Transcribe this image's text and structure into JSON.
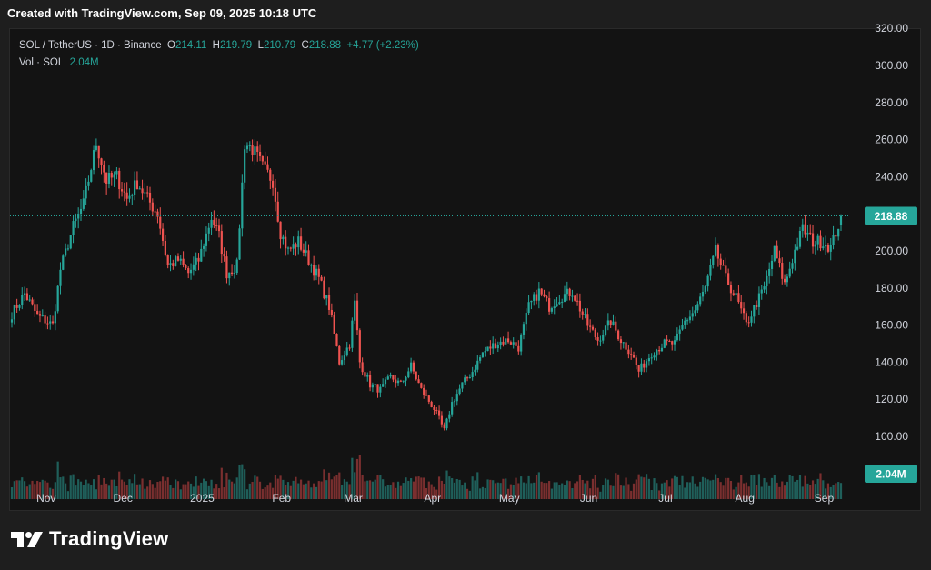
{
  "header": {
    "created_with": "Created with TradingView.com, Sep 09, 2025 10:18 UTC"
  },
  "legend": {
    "symbol": "SOL / TetherUS · 1D · Binance",
    "open_label": "O",
    "open_value": "214.11",
    "high_label": "H",
    "high_value": "219.79",
    "low_label": "L",
    "low_value": "210.79",
    "close_label": "C",
    "close_value": "218.88",
    "change": "+4.77 (+2.23%)",
    "volume_label": "Vol · SOL",
    "volume_value": "2.04M"
  },
  "footer": {
    "brand": "TradingView",
    "logo_icon": "tradingview-logo-icon"
  },
  "colors": {
    "up": "#26a69a",
    "down": "#ef5350",
    "volume_up": "#1f5f5a",
    "volume_down": "#7a2f2f",
    "background": "#131313",
    "axis_text": "#d1d4dc",
    "badge": "#26a69a"
  },
  "chart_data": {
    "type": "candlestick",
    "symbol": "SOL / TetherUS",
    "interval": "1D",
    "exchange": "Binance",
    "ylim": [
      90,
      320
    ],
    "y_ticks": [
      "320.00",
      "300.00",
      "280.00",
      "260.00",
      "240.00",
      "220.00",
      "200.00",
      "180.00",
      "160.00",
      "140.00",
      "120.00",
      "100.00"
    ],
    "x_ticks": [
      "Nov",
      "Dec",
      "2025",
      "Feb",
      "Mar",
      "Apr",
      "May",
      "Jun",
      "Jul",
      "Aug",
      "Sep"
    ],
    "last_price_label": "218.88",
    "last_volume_label": "2.04M",
    "grid": false,
    "close_anchors": [
      [
        "2024-10-20",
        166
      ],
      [
        "2024-10-25",
        177
      ],
      [
        "2024-10-30",
        165
      ],
      [
        "2024-11-05",
        160
      ],
      [
        "2024-11-08",
        190
      ],
      [
        "2024-11-13",
        213
      ],
      [
        "2024-11-17",
        225
      ],
      [
        "2024-11-20",
        245
      ],
      [
        "2024-11-22",
        258
      ],
      [
        "2024-11-26",
        238
      ],
      [
        "2024-11-30",
        240
      ],
      [
        "2024-12-04",
        228
      ],
      [
        "2024-12-08",
        237
      ],
      [
        "2024-12-12",
        228
      ],
      [
        "2024-12-16",
        220
      ],
      [
        "2024-12-20",
        192
      ],
      [
        "2024-12-24",
        195
      ],
      [
        "2024-12-28",
        188
      ],
      [
        "2025-01-01",
        195
      ],
      [
        "2025-01-06",
        218
      ],
      [
        "2025-01-09",
        208
      ],
      [
        "2025-01-12",
        188
      ],
      [
        "2025-01-16",
        192
      ],
      [
        "2025-01-19",
        258
      ],
      [
        "2025-01-22",
        255
      ],
      [
        "2025-01-26",
        245
      ],
      [
        "2025-01-30",
        238
      ],
      [
        "2025-02-02",
        210
      ],
      [
        "2025-02-05",
        200
      ],
      [
        "2025-02-09",
        205
      ],
      [
        "2025-02-13",
        195
      ],
      [
        "2025-02-17",
        185
      ],
      [
        "2025-02-21",
        170
      ],
      [
        "2025-02-25",
        140
      ],
      [
        "2025-03-01",
        150
      ],
      [
        "2025-03-03",
        172
      ],
      [
        "2025-03-05",
        140
      ],
      [
        "2025-03-09",
        128
      ],
      [
        "2025-03-13",
        125
      ],
      [
        "2025-03-17",
        132
      ],
      [
        "2025-03-21",
        128
      ],
      [
        "2025-03-25",
        138
      ],
      [
        "2025-03-29",
        125
      ],
      [
        "2025-04-03",
        115
      ],
      [
        "2025-04-07",
        103
      ],
      [
        "2025-04-10",
        118
      ],
      [
        "2025-04-14",
        128
      ],
      [
        "2025-04-18",
        135
      ],
      [
        "2025-04-22",
        145
      ],
      [
        "2025-04-27",
        150
      ],
      [
        "2025-05-02",
        152
      ],
      [
        "2025-05-06",
        148
      ],
      [
        "2025-05-10",
        170
      ],
      [
        "2025-05-14",
        178
      ],
      [
        "2025-05-18",
        170
      ],
      [
        "2025-05-22",
        175
      ],
      [
        "2025-05-27",
        178
      ],
      [
        "2025-06-02",
        160
      ],
      [
        "2025-06-06",
        152
      ],
      [
        "2025-06-11",
        162
      ],
      [
        "2025-06-15",
        152
      ],
      [
        "2025-06-19",
        145
      ],
      [
        "2025-06-22",
        135
      ],
      [
        "2025-06-27",
        145
      ],
      [
        "2025-07-02",
        150
      ],
      [
        "2025-07-06",
        150
      ],
      [
        "2025-07-10",
        162
      ],
      [
        "2025-07-14",
        168
      ],
      [
        "2025-07-18",
        180
      ],
      [
        "2025-07-22",
        200
      ],
      [
        "2025-07-26",
        185
      ],
      [
        "2025-07-30",
        175
      ],
      [
        "2025-08-03",
        160
      ],
      [
        "2025-08-07",
        172
      ],
      [
        "2025-08-10",
        180
      ],
      [
        "2025-08-14",
        200
      ],
      [
        "2025-08-18",
        182
      ],
      [
        "2025-08-22",
        200
      ],
      [
        "2025-08-25",
        212
      ],
      [
        "2025-08-29",
        205
      ],
      [
        "2025-09-02",
        205
      ],
      [
        "2025-09-05",
        202
      ],
      [
        "2025-09-08",
        214
      ],
      [
        "2025-09-09",
        218.88
      ]
    ],
    "last_candle": {
      "date": "2025-09-09",
      "open": 214.11,
      "high": 219.79,
      "low": 210.79,
      "close": 218.88,
      "volume_label": "2.04M"
    }
  }
}
